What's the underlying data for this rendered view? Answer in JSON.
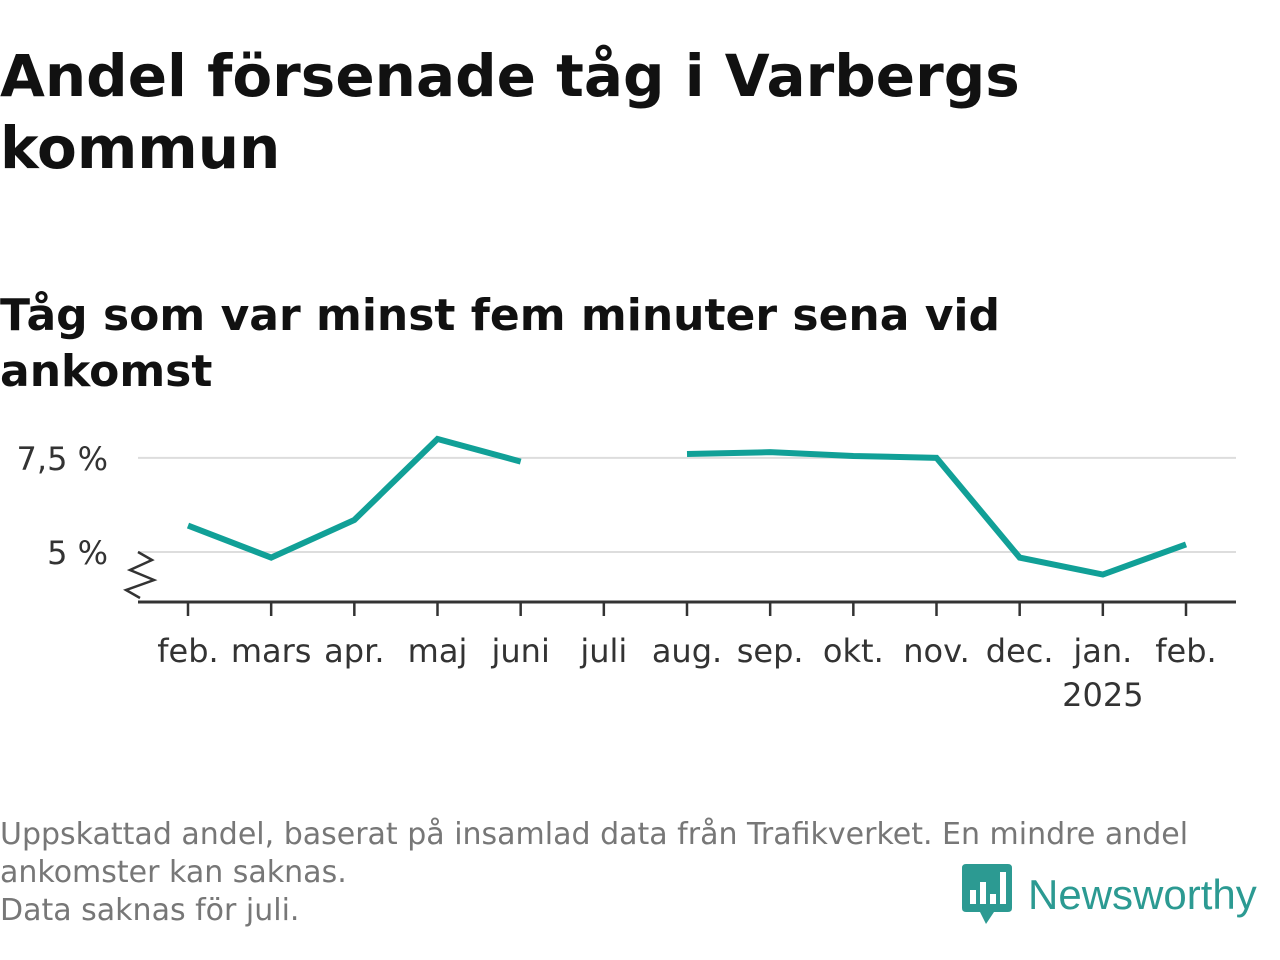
{
  "page": {
    "title": "Andel försenade tåg i Varbergs kommun",
    "subtitle": "Tåg som var minst fem minuter sena vid ankomst",
    "footnote_lines": [
      "Uppskattad andel, baserat på insamlad data från Trafikverket. En mindre andel",
      "ankomster kan saknas.",
      "Data saknas för juli."
    ],
    "brand": "Newsworthy",
    "brand_color": "#2c9a92",
    "line_color": "#11a097"
  },
  "chart_data": {
    "type": "line",
    "title": "Andel försenade tåg i Varbergs kommun",
    "subtitle": "Tåg som var minst fem minuter sena vid ankomst",
    "categories": [
      "feb.",
      "mars",
      "apr.",
      "maj",
      "juni",
      "juli",
      "aug.",
      "sep.",
      "okt.",
      "nov.",
      "dec.",
      "jan.",
      "feb."
    ],
    "year_labels": [
      {
        "index": 11,
        "label": "2025"
      }
    ],
    "series": [
      {
        "values": [
          5.7,
          4.85,
          5.85,
          8.0,
          7.4,
          null,
          7.6,
          7.65,
          7.55,
          7.5,
          4.85,
          4.4,
          5.2
        ]
      }
    ],
    "yticks": [
      {
        "value": 5,
        "label": "5 %"
      },
      {
        "value": 7.5,
        "label": "7,5 %"
      }
    ],
    "ylim": [
      3.7,
      8.6
    ],
    "axis_break": true,
    "grid": true,
    "legend": "none",
    "xlabel": "",
    "ylabel": ""
  }
}
